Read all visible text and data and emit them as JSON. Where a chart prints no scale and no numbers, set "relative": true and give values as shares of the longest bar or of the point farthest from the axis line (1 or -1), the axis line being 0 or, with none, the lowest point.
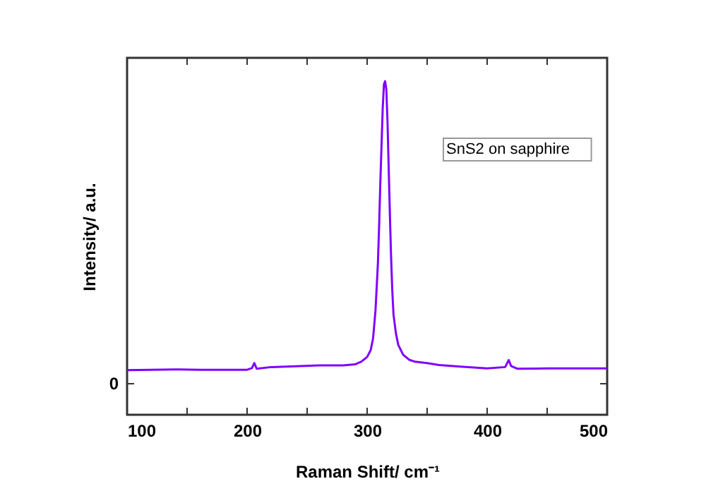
{
  "chart_data": {
    "type": "line",
    "xlabel": "Raman Shift/ cm⁻¹",
    "ylabel": "Intensity/ a.u.",
    "annotations": [
      "SnS2 on sapphire",
      "0"
    ],
    "relative": true,
    "xlim": [
      100,
      500
    ],
    "xticks": [
      100,
      {
        "value": 150,
        "label": null
      },
      200,
      {
        "value": 250,
        "label": null
      },
      300,
      {
        "value": 350,
        "label": null
      },
      400,
      {
        "value": 450,
        "label": null
      },
      500
    ],
    "grid": false,
    "legend": false,
    "marker": "none",
    "line_style": "solid",
    "series": [
      {
        "color": "#8000ff",
        "x": [
          100,
          140,
          160,
          200,
          204,
          206,
          208,
          220,
          260,
          280,
          290,
          295,
          300,
          303,
          305,
          307,
          309,
          310,
          311,
          312,
          313,
          314,
          315,
          316,
          317,
          318,
          319,
          320,
          321,
          322,
          324,
          326,
          330,
          335,
          340,
          350,
          360,
          380,
          400,
          415,
          418,
          420,
          425,
          450,
          500
        ],
        "values": [
          0.134,
          0.136,
          0.135,
          0.135,
          0.14,
          0.155,
          0.138,
          0.143,
          0.148,
          0.148,
          0.151,
          0.159,
          0.173,
          0.194,
          0.23,
          0.314,
          0.455,
          0.567,
          0.695,
          0.807,
          0.919,
          0.99,
          1,
          0.976,
          0.877,
          0.737,
          0.596,
          0.469,
          0.37,
          0.3,
          0.244,
          0.209,
          0.18,
          0.165,
          0.159,
          0.155,
          0.149,
          0.144,
          0.139,
          0.143,
          0.164,
          0.146,
          0.138,
          0.139,
          0.139
        ]
      }
    ]
  }
}
